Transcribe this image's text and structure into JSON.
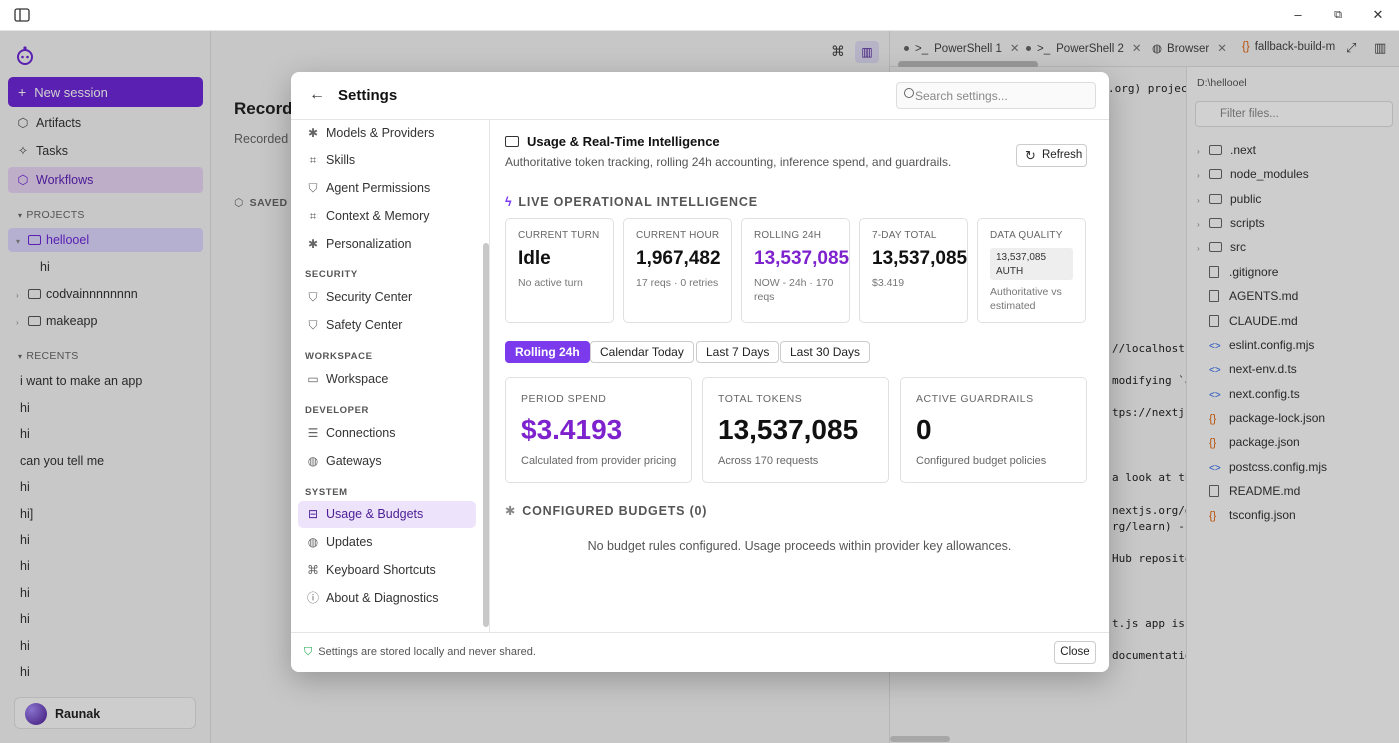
{
  "window": {
    "minimize": "–",
    "restore": "⧉",
    "close": "✕"
  },
  "sidebar": {
    "new_session": "New session",
    "nav": [
      {
        "label": "Artifacts",
        "icon": "cube-icon"
      },
      {
        "label": "Tasks",
        "icon": "sparkle-icon"
      },
      {
        "label": "Workflows",
        "icon": "cube-icon"
      }
    ],
    "projects_header": "PROJECTS",
    "projects": [
      {
        "label": "hellooel",
        "expanded": true
      },
      {
        "label": "hi",
        "child": true
      },
      {
        "label": "codvainnnnnnnn"
      },
      {
        "label": "makeapp"
      }
    ],
    "recents_header": "RECENTS",
    "recents": [
      "i want to make an app",
      "hi",
      "hi",
      "can you tell me",
      "hi",
      "hi]",
      "hi",
      "hi",
      "hi",
      "hi",
      "hi",
      "hi"
    ],
    "user": "Raunak"
  },
  "main": {
    "title": "Record",
    "subtitle": "Recorded",
    "saved": "SAVED"
  },
  "right": {
    "tabs": [
      "PowerShell 1",
      "PowerShell 2",
      "Browser",
      "fallback-build-m"
    ],
    "terminal_lines": [
      ".org) project",
      "//localhost:",
      "modifying `ap",
      "tps://nextjs",
      "a look at the",
      "nextjs.org/de",
      "rg/learn) - ",
      "Hub reposito",
      "t.js app is ",
      "documentation"
    ],
    "path": "D:\\hellooel",
    "filter_placeholder": "Filter files...",
    "files": [
      {
        "name": ".next",
        "type": "folder"
      },
      {
        "name": "node_modules",
        "type": "folder"
      },
      {
        "name": "public",
        "type": "folder"
      },
      {
        "name": "scripts",
        "type": "folder"
      },
      {
        "name": "src",
        "type": "folder"
      },
      {
        "name": ".gitignore",
        "type": "file"
      },
      {
        "name": "AGENTS.md",
        "type": "file"
      },
      {
        "name": "CLAUDE.md",
        "type": "file"
      },
      {
        "name": "eslint.config.mjs",
        "type": "code"
      },
      {
        "name": "next-env.d.ts",
        "type": "code"
      },
      {
        "name": "next.config.ts",
        "type": "code"
      },
      {
        "name": "package-lock.json",
        "type": "json"
      },
      {
        "name": "package.json",
        "type": "json"
      },
      {
        "name": "postcss.config.mjs",
        "type": "code"
      },
      {
        "name": "README.md",
        "type": "file"
      },
      {
        "name": "tsconfig.json",
        "type": "json"
      }
    ]
  },
  "settings": {
    "title": "Settings",
    "search_placeholder": "Search settings...",
    "nav_top": [
      {
        "label": "Models & Providers",
        "icon": "sparkle-icon"
      },
      {
        "label": "Skills",
        "icon": "cpu-icon"
      },
      {
        "label": "Agent Permissions",
        "icon": "shield-icon"
      },
      {
        "label": "Context & Memory",
        "icon": "cpu-icon"
      },
      {
        "label": "Personalization",
        "icon": "sparkle-icon"
      }
    ],
    "security_header": "SECURITY",
    "security": [
      {
        "label": "Security Center",
        "icon": "shield-icon"
      },
      {
        "label": "Safety Center",
        "icon": "shield-icon"
      }
    ],
    "workspace_header": "WORKSPACE",
    "workspace": [
      {
        "label": "Workspace",
        "icon": "folder-icon"
      }
    ],
    "developer_header": "DEVELOPER",
    "developer": [
      {
        "label": "Connections",
        "icon": "server-icon"
      },
      {
        "label": "Gateways",
        "icon": "globe-icon"
      }
    ],
    "system_header": "SYSTEM",
    "system": [
      {
        "label": "Usage & Budgets",
        "icon": "drive-icon",
        "active": true
      },
      {
        "label": "Updates",
        "icon": "globe-icon"
      },
      {
        "label": "Keyboard Shortcuts",
        "icon": "command-icon"
      },
      {
        "label": "About & Diagnostics",
        "icon": "info-icon"
      }
    ],
    "section_title": "Usage & Real-Time Intelligence",
    "section_desc": "Authoritative token tracking, rolling 24h accounting, inference spend, and guardrails.",
    "refresh": "Refresh",
    "live_header": "LIVE OPERATIONAL INTELLIGENCE",
    "cards": [
      {
        "label": "CURRENT TURN",
        "value": "Idle",
        "sub": "No active turn"
      },
      {
        "label": "CURRENT HOUR",
        "value": "1,967,482",
        "sub": "17 reqs · 0 retries"
      },
      {
        "label": "ROLLING 24H",
        "value": "13,537,085",
        "sub": "NOW - 24h · 170 reqs"
      },
      {
        "label": "7-DAY TOTAL",
        "value": "13,537,085",
        "sub": "$3.419"
      },
      {
        "label": "DATA QUALITY",
        "badge_value": "13,537,085",
        "badge_tag": "AUTH",
        "sub": "Authoritative vs estimated"
      }
    ],
    "ranges": [
      "Rolling 24h",
      "Calendar Today",
      "Last 7 Days",
      "Last 30 Days"
    ],
    "summary": [
      {
        "label": "PERIOD SPEND",
        "value": "$3.4193",
        "sub": "Calculated from provider pricing"
      },
      {
        "label": "TOTAL TOKENS",
        "value": "13,537,085",
        "sub": "Across 170 requests"
      },
      {
        "label": "ACTIVE GUARDRAILS",
        "value": "0",
        "sub": "Configured budget policies"
      }
    ],
    "budgets_header": "CONFIGURED BUDGETS (0)",
    "budgets_empty": "No budget rules configured. Usage proceeds within provider key allowances.",
    "footer_note": "Settings are stored locally and never shared.",
    "close": "Close"
  },
  "colors": {
    "accent": "#7c3aed",
    "accent_dark": "#6d28d9",
    "nav_active": "#ede4fb"
  }
}
